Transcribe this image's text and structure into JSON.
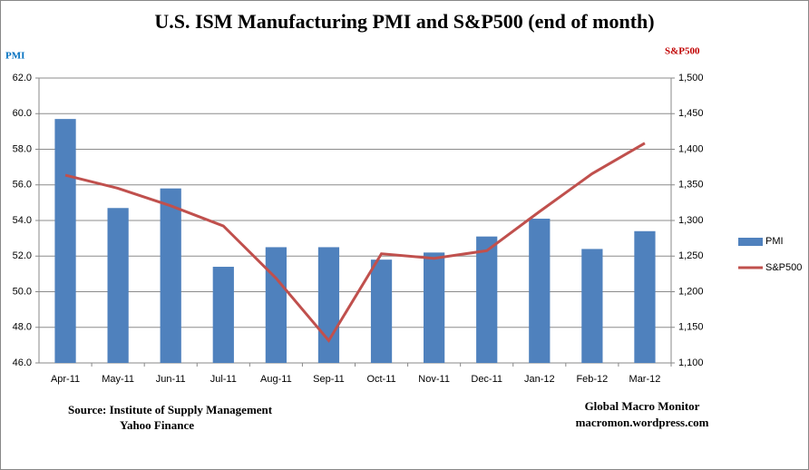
{
  "chart_data": {
    "type": "bar_line",
    "title": "U.S. ISM Manufacturing  PMI and S&P500 (end of month)",
    "ylabel": "PMI",
    "y2label": "S&P500",
    "categories": [
      "Apr-11",
      "May-11",
      "Jun-11",
      "Jul-11",
      "Aug-11",
      "Sep-11",
      "Oct-11",
      "Nov-11",
      "Dec-11",
      "Jan-12",
      "Feb-12",
      "Mar-12"
    ],
    "series": [
      {
        "name": "PMI",
        "type": "bar",
        "color": "#4f81bd",
        "values": [
          59.7,
          54.7,
          55.8,
          51.4,
          52.5,
          52.5,
          51.8,
          52.2,
          53.1,
          54.1,
          52.4,
          53.4
        ]
      },
      {
        "name": "S&P500",
        "type": "line",
        "axis": "y2",
        "color": "#c0504d",
        "values": [
          1363.6,
          1345.2,
          1320.6,
          1292.3,
          1218.9,
          1131.4,
          1253.3,
          1246.9,
          1257.6,
          1312.4,
          1365.7,
          1408.5
        ]
      }
    ],
    "ylim": [
      46,
      62
    ],
    "yticks": [
      {
        "value": 46,
        "label": "46.0"
      },
      {
        "value": 48,
        "label": "48.0"
      },
      {
        "value": 50,
        "label": "50.0"
      },
      {
        "value": 52,
        "label": "52.0"
      },
      {
        "value": 54,
        "label": "54.0"
      },
      {
        "value": 56,
        "label": "56.0"
      },
      {
        "value": 58,
        "label": "58.0"
      },
      {
        "value": 60,
        "label": "60.0"
      },
      {
        "value": 62,
        "label": "62.0"
      }
    ],
    "y2lim": [
      1100,
      1500
    ],
    "y2ticks": [
      {
        "value": 1100,
        "label": "1,100"
      },
      {
        "value": 1150,
        "label": "1,150"
      },
      {
        "value": 1200,
        "label": "1,200"
      },
      {
        "value": 1250,
        "label": "1,250"
      },
      {
        "value": 1300,
        "label": "1,300"
      },
      {
        "value": 1350,
        "label": "1,350"
      },
      {
        "value": 1400,
        "label": "1,400"
      },
      {
        "value": 1450,
        "label": "1,450"
      },
      {
        "value": 1500,
        "label": "1,500"
      }
    ],
    "grid": true,
    "legend": "right",
    "annotations": [
      "Source:  Institute of Supply Management",
      "Yahoo Finance",
      "Global Macro Monitor",
      "macromon.wordpress.com"
    ]
  }
}
